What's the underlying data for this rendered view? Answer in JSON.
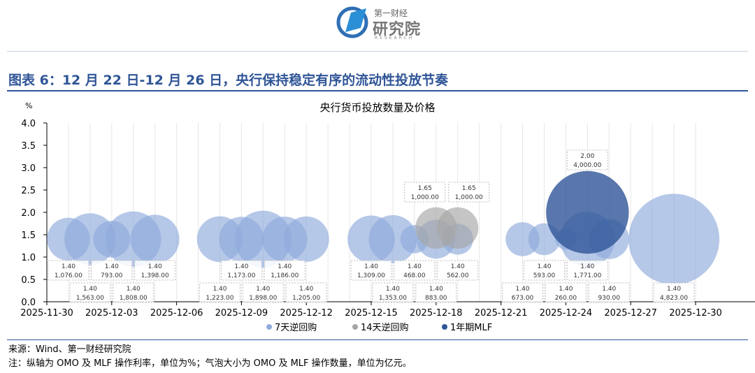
{
  "header": {
    "logo_line1": "第一财经",
    "logo_line2": "研究院",
    "logo_line3": "RESEARCH"
  },
  "figure_title": "图表 6：12 月 22 日-12 月 26 日，央行保持稳定有序的流动性投放节奏",
  "source": "来源：Wind、第一财经研究院",
  "note": "注：纵轴为 OMO 及 MLF 操作利率，单位为%；气泡大小为 OMO 及 MLF 操作数量，单位为亿元。",
  "colors": {
    "s7": "#8faadc",
    "s14": "#a6a6a6",
    "mlf": "#2f5597",
    "title": "#2f5597"
  },
  "chart_data": {
    "type": "bubble",
    "title": "央行货币投放数量及价格",
    "ylabel": "%",
    "ylim": [
      0,
      4.0
    ],
    "yticks": [
      "0.0",
      "0.5",
      "1.0",
      "1.5",
      "2.0",
      "2.5",
      "3.0",
      "3.5",
      "4.0"
    ],
    "xlim": [
      "2025-11-30",
      "2025-12-30"
    ],
    "xticks": [
      "2025-11-30",
      "2025-12-03",
      "2025-12-06",
      "2025-12-09",
      "2025-12-12",
      "2025-12-15",
      "2025-12-18",
      "2025-12-21",
      "2025-12-24",
      "2025-12-27",
      "2025-12-30"
    ],
    "grid": "vertical",
    "legend_position": "bottom",
    "series": [
      {
        "name": "7天逆回购",
        "color": "#8faadc",
        "points": [
          {
            "date": "2025-12-01",
            "rate": "1.40",
            "amount": "1,076.00"
          },
          {
            "date": "2025-12-02",
            "rate": "1.40",
            "amount": "1,563.00"
          },
          {
            "date": "2025-12-03",
            "rate": "1.40",
            "amount": "793.00"
          },
          {
            "date": "2025-12-04",
            "rate": "1.40",
            "amount": "1,808.00"
          },
          {
            "date": "2025-12-05",
            "rate": "1.40",
            "amount": "1,398.00"
          },
          {
            "date": "2025-12-08",
            "rate": "1.40",
            "amount": "1,223.00"
          },
          {
            "date": "2025-12-09",
            "rate": "1.40",
            "amount": "1,173.00"
          },
          {
            "date": "2025-12-10",
            "rate": "1.40",
            "amount": "1,898.00"
          },
          {
            "date": "2025-12-11",
            "rate": "1.40",
            "amount": "1,186.00"
          },
          {
            "date": "2025-12-12",
            "rate": "1.40",
            "amount": "1,205.00"
          },
          {
            "date": "2025-12-15",
            "rate": "1.40",
            "amount": "1,309.00"
          },
          {
            "date": "2025-12-16",
            "rate": "1.40",
            "amount": "1,353.00"
          },
          {
            "date": "2025-12-17",
            "rate": "1.40",
            "amount": "468.00"
          },
          {
            "date": "2025-12-18",
            "rate": "1.40",
            "amount": "883.00"
          },
          {
            "date": "2025-12-19",
            "rate": "1.40",
            "amount": "562.00"
          },
          {
            "date": "2025-12-22",
            "rate": "1.40",
            "amount": "673.00"
          },
          {
            "date": "2025-12-23",
            "rate": "1.40",
            "amount": "593.00"
          },
          {
            "date": "2025-12-24",
            "rate": "1.40",
            "amount": "260.00"
          },
          {
            "date": "2025-12-25",
            "rate": "1.40",
            "amount": "1,771.00"
          },
          {
            "date": "2025-12-26",
            "rate": "1.40",
            "amount": "930.00"
          },
          {
            "date": "2025-12-29",
            "rate": "1.40",
            "amount": "4,823.00"
          }
        ]
      },
      {
        "name": "14天逆回购",
        "color": "#a6a6a6",
        "points": [
          {
            "date": "2025-12-18",
            "rate": "1.65",
            "amount": "1,000.00"
          },
          {
            "date": "2025-12-19",
            "rate": "1.65",
            "amount": "1,000.00"
          }
        ]
      },
      {
        "name": "1年期MLF",
        "color": "#2f5597",
        "points": [
          {
            "date": "2025-12-25",
            "rate": "2.00",
            "amount": "4,000.00"
          }
        ]
      }
    ]
  }
}
